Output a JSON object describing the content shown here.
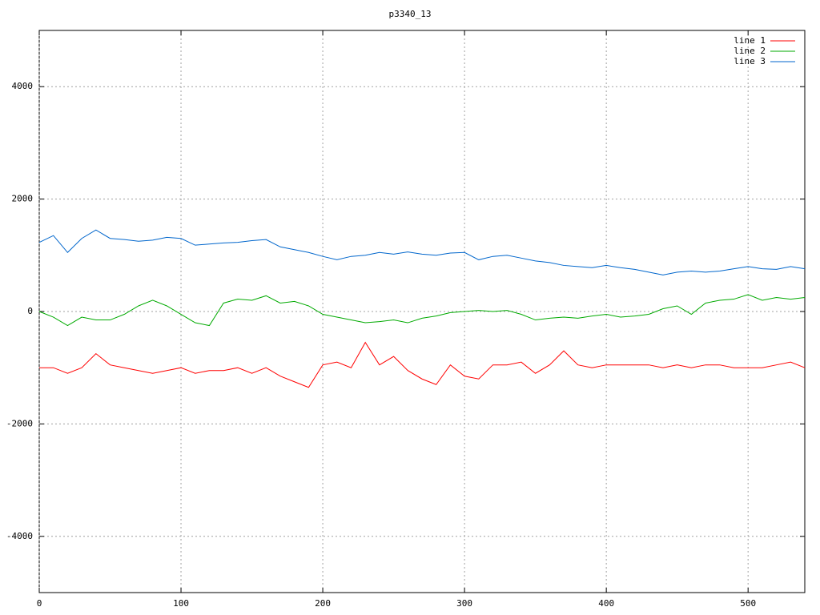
{
  "chart_data": {
    "type": "line",
    "title": "p3340_13",
    "x": [
      0,
      10,
      20,
      30,
      40,
      50,
      60,
      70,
      80,
      90,
      100,
      110,
      120,
      130,
      140,
      150,
      160,
      170,
      180,
      190,
      200,
      210,
      220,
      230,
      240,
      250,
      260,
      270,
      280,
      290,
      300,
      310,
      320,
      330,
      340,
      350,
      360,
      370,
      380,
      390,
      400,
      410,
      420,
      430,
      440,
      450,
      460,
      470,
      480,
      490,
      500,
      510,
      520,
      530,
      540
    ],
    "series": [
      {
        "name": "line 1",
        "color": "#ff0000",
        "values": [
          -1000,
          -1000,
          -1100,
          -1000,
          -750,
          -950,
          -1000,
          -1050,
          -1100,
          -1050,
          -1000,
          -1100,
          -1050,
          -1050,
          -1000,
          -1100,
          -1000,
          -1150,
          -1250,
          -1350,
          -950,
          -900,
          -1000,
          -550,
          -950,
          -800,
          -1050,
          -1200,
          -1300,
          -950,
          -1150,
          -1200,
          -950,
          -950,
          -900,
          -1100,
          -950,
          -700,
          -950,
          -1000,
          -950,
          -950,
          -950,
          -950,
          -1000,
          -950,
          -1000,
          -950,
          -950,
          -1000,
          -1000,
          -1000,
          -950,
          -900,
          -1000
        ]
      },
      {
        "name": "line 2",
        "color": "#00aa00",
        "values": [
          0,
          -100,
          -250,
          -100,
          -150,
          -150,
          -50,
          100,
          200,
          100,
          -50,
          -200,
          -250,
          150,
          220,
          200,
          280,
          150,
          180,
          100,
          -50,
          -100,
          -150,
          -200,
          -180,
          -150,
          -200,
          -120,
          -80,
          -20,
          0,
          20,
          0,
          20,
          -50,
          -150,
          -120,
          -100,
          -120,
          -80,
          -50,
          -100,
          -80,
          -50,
          50,
          100,
          -50,
          150,
          200,
          220,
          300,
          200,
          250,
          220,
          250
        ]
      },
      {
        "name": "line 3",
        "color": "#0066cc",
        "values": [
          1230,
          1350,
          1050,
          1300,
          1450,
          1300,
          1280,
          1250,
          1270,
          1320,
          1300,
          1180,
          1200,
          1220,
          1230,
          1260,
          1280,
          1150,
          1100,
          1050,
          980,
          920,
          980,
          1000,
          1050,
          1020,
          1060,
          1020,
          1000,
          1040,
          1050,
          920,
          980,
          1000,
          950,
          900,
          870,
          820,
          800,
          780,
          820,
          780,
          750,
          700,
          650,
          700,
          720,
          700,
          720,
          760,
          800,
          760,
          750,
          800,
          760
        ]
      }
    ],
    "xlim": [
      0,
      540
    ],
    "xticks": [
      0,
      100,
      200,
      300,
      400,
      500
    ],
    "ylim": [
      -5000,
      5000
    ],
    "yticks": [
      -4000,
      -2000,
      0,
      2000,
      4000
    ],
    "grid": true,
    "legend": "top-right"
  }
}
